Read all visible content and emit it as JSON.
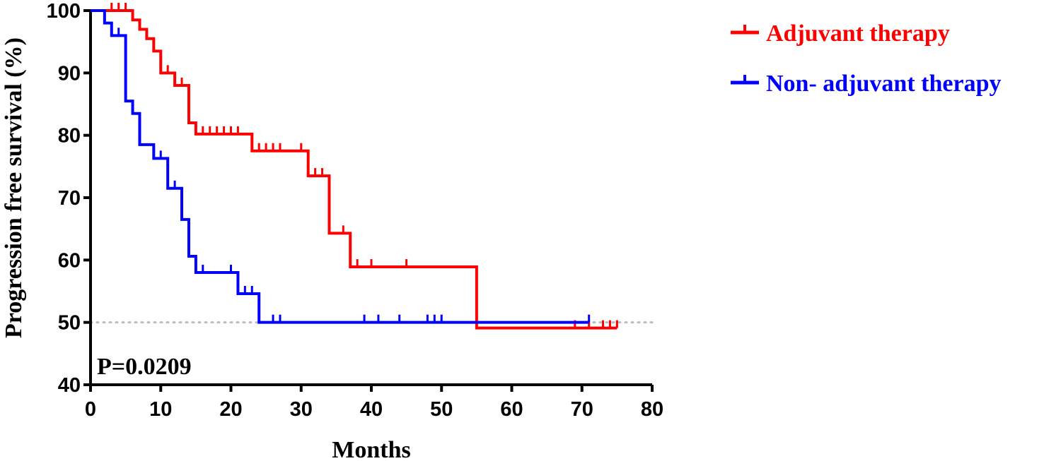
{
  "chart_data": {
    "type": "line",
    "subtype": "kaplan-meier step plot",
    "xlabel": "Months",
    "ylabel": "Progression free survival (%)",
    "xlim": [
      0,
      80
    ],
    "ylim": [
      40,
      100
    ],
    "xticks": [
      0,
      10,
      20,
      30,
      40,
      50,
      60,
      70,
      80
    ],
    "yticks": [
      40,
      50,
      60,
      70,
      80,
      90,
      100
    ],
    "grid": false,
    "legend_position": "right",
    "reference_line": {
      "y": 50,
      "style": "dotted",
      "color": "#bbbbbb"
    },
    "annotation": "P=0.0209",
    "series": [
      {
        "name": "Adjuvant therapy",
        "color": "#ff0000",
        "steps": [
          [
            0,
            100
          ],
          [
            6,
            98.5
          ],
          [
            7,
            97
          ],
          [
            8,
            95.5
          ],
          [
            9,
            93.5
          ],
          [
            10,
            90
          ],
          [
            12,
            88
          ],
          [
            14,
            82
          ],
          [
            15,
            80.2
          ],
          [
            23,
            77.5
          ],
          [
            31,
            73.5
          ],
          [
            34,
            64.3
          ],
          [
            37,
            58.9
          ],
          [
            55,
            49.1
          ],
          [
            75,
            49.1
          ]
        ],
        "censors": [
          3,
          4,
          5,
          11,
          13,
          16,
          17,
          18,
          19,
          20,
          21,
          24,
          25,
          26,
          27,
          30,
          32,
          33,
          36,
          38,
          40,
          45,
          69,
          71,
          73,
          74,
          75
        ]
      },
      {
        "name": "Non- adjuvant therapy",
        "color": "#0000ff",
        "steps": [
          [
            0,
            100
          ],
          [
            2,
            98
          ],
          [
            3,
            96
          ],
          [
            5,
            85.5
          ],
          [
            6,
            83.5
          ],
          [
            7,
            78.5
          ],
          [
            9,
            76.3
          ],
          [
            11,
            71.5
          ],
          [
            13,
            66.5
          ],
          [
            14,
            60.6
          ],
          [
            15,
            58
          ],
          [
            21,
            54.6
          ],
          [
            24,
            50
          ],
          [
            71,
            50
          ]
        ],
        "censors": [
          4,
          10,
          12,
          16,
          20,
          22,
          23,
          26,
          27,
          39,
          41,
          44,
          48,
          49,
          50,
          71
        ]
      }
    ]
  }
}
